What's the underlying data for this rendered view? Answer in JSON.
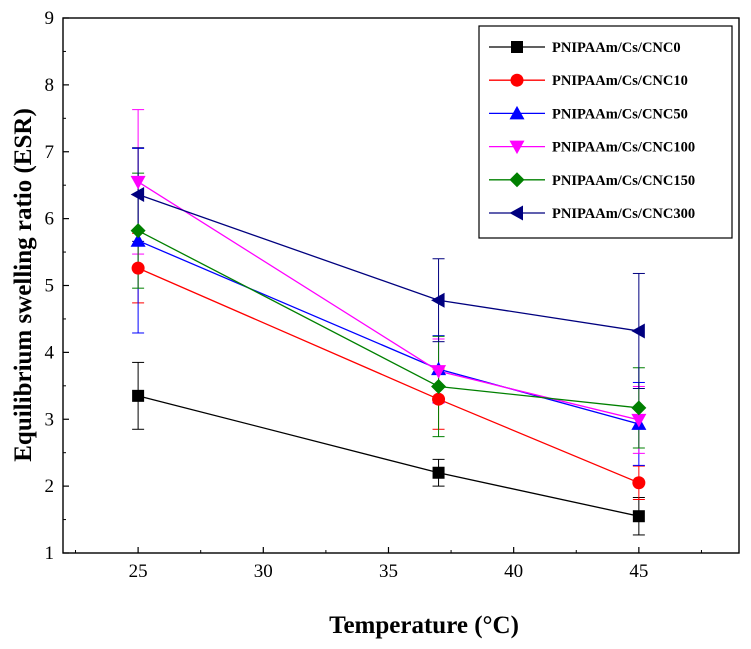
{
  "chart_data": {
    "type": "line",
    "xlabel": "Temperature (°C)",
    "ylabel": "Equilibrium swelling ratio (ESR)",
    "xlim": [
      22,
      49
    ],
    "ylim": [
      1,
      9
    ],
    "xticks": [
      25,
      30,
      35,
      40,
      45
    ],
    "yticks": [
      1,
      2,
      3,
      4,
      5,
      6,
      7,
      8,
      9
    ],
    "grid": false,
    "legend_position": "top-right",
    "x": [
      25,
      37,
      45
    ],
    "series": [
      {
        "name": "PNIPAAm/Cs/CNC0",
        "color": "#000000",
        "marker": "square",
        "values": [
          3.35,
          2.2,
          1.55
        ],
        "errors": [
          0.5,
          0.2,
          0.28
        ]
      },
      {
        "name": "PNIPAAm/Cs/CNC10",
        "color": "#ff0000",
        "marker": "circle",
        "values": [
          5.26,
          3.3,
          2.05
        ],
        "errors": [
          0.52,
          0.45,
          0.25
        ]
      },
      {
        "name": "PNIPAAm/Cs/CNC50",
        "color": "#0000ff",
        "marker": "triangle-up",
        "values": [
          5.67,
          3.75,
          2.93
        ],
        "errors": [
          1.38,
          0.5,
          0.62
        ]
      },
      {
        "name": "PNIPAAm/Cs/CNC100",
        "color": "#ff00ff",
        "marker": "triangle-down",
        "values": [
          6.55,
          3.72,
          2.99
        ],
        "errors": [
          1.08,
          0.48,
          0.5
        ]
      },
      {
        "name": "PNIPAAm/Cs/CNC150",
        "color": "#008000",
        "marker": "diamond",
        "values": [
          5.82,
          3.49,
          3.17
        ],
        "errors": [
          0.86,
          0.75,
          0.6
        ]
      },
      {
        "name": "PNIPAAm/Cs/CNC300",
        "color": "#00007f",
        "marker": "triangle-left",
        "values": [
          6.36,
          4.78,
          4.32
        ],
        "errors": [
          0.7,
          0.62,
          0.86
        ]
      }
    ]
  }
}
